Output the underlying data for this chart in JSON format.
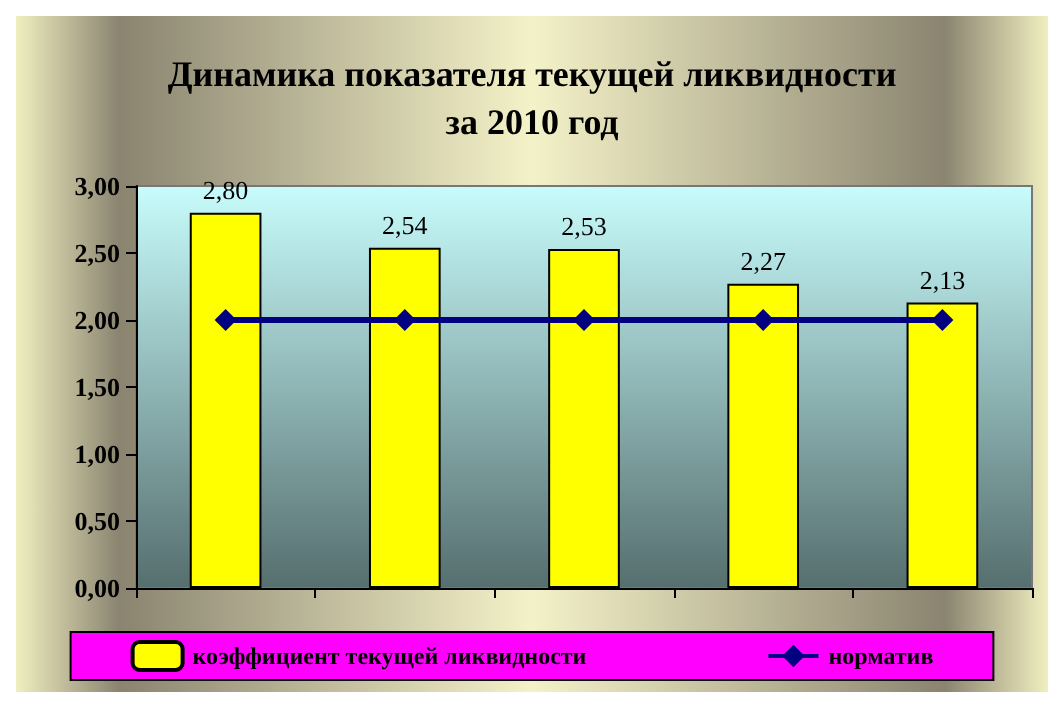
{
  "chart_data": {
    "type": "bar",
    "title": "Динамика показателя текущей ликвидности\nза 2010 год",
    "categories": [
      null,
      null,
      null,
      null,
      null
    ],
    "series": [
      {
        "name": "коэффициент текущей ликвидности",
        "color": "#ffff00",
        "values": [
          2.8,
          2.54,
          2.53,
          2.27,
          2.13
        ],
        "value_labels": [
          "2,80",
          "2,54",
          "2,53",
          "2,27",
          "2,13"
        ]
      },
      {
        "name": "норматив",
        "type": "line",
        "color": "#000080",
        "values": [
          2,
          2,
          2,
          2,
          2
        ],
        "marker": "diamond"
      }
    ],
    "ylim": [
      0,
      3
    ],
    "yticks": [
      {
        "value": 0,
        "label": "0,00"
      },
      {
        "value": 0.5,
        "label": "0,50"
      },
      {
        "value": 1,
        "label": "1,00"
      },
      {
        "value": 1.5,
        "label": "1,50"
      },
      {
        "value": 2,
        "label": "2,00"
      },
      {
        "value": 2.5,
        "label": "2,50"
      },
      {
        "value": 3,
        "label": "3,00"
      }
    ],
    "grid": false,
    "legend": "bottom"
  }
}
